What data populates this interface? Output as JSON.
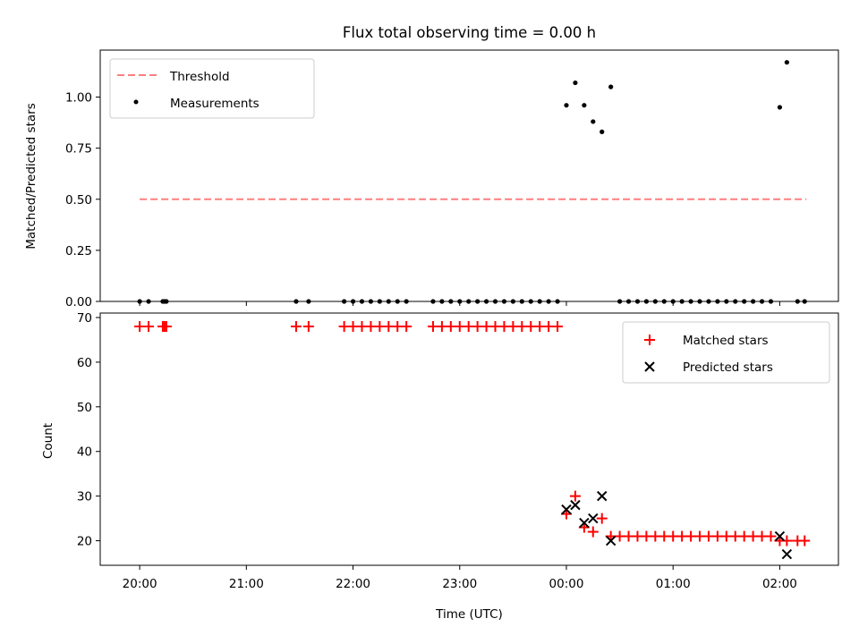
{
  "chart_data": [
    {
      "panel": "top",
      "type": "scatter",
      "title": "Flux total observing time = 0.00 h",
      "xlabel": "",
      "ylabel": "Matched/Predicted stars",
      "ylim": [
        0,
        1.23
      ],
      "yticks": [
        "0.00",
        "0.25",
        "0.50",
        "0.75",
        "1.00"
      ],
      "xlim_hours": [
        19.63,
        26.55
      ],
      "grid": false,
      "legend_position": "top-left",
      "legend": [
        "Threshold",
        "Measurements"
      ],
      "colors": {
        "threshold": "#ff7f7f",
        "measurements": "#000000"
      },
      "series": [
        {
          "name": "Threshold",
          "style": "dashed-line",
          "x": [
            "20:00",
            "26:15"
          ],
          "y": [
            0.5,
            0.5
          ]
        },
        {
          "name": "Measurements",
          "style": "dots",
          "x": [
            "20:00",
            "20:05",
            "20:13",
            "20:14",
            "20:15",
            "21:28",
            "21:35",
            "21:55",
            "22:00",
            "22:05",
            "22:10",
            "22:15",
            "22:20",
            "22:25",
            "22:30",
            "22:45",
            "22:50",
            "22:55",
            "23:00",
            "23:05",
            "23:10",
            "23:15",
            "23:20",
            "23:25",
            "23:30",
            "23:35",
            "23:40",
            "23:45",
            "23:50",
            "23:55",
            "24:00",
            "24:05",
            "24:10",
            "24:15",
            "24:20",
            "24:25",
            "24:30",
            "24:35",
            "24:40",
            "24:45",
            "24:50",
            "24:55",
            "25:00",
            "25:05",
            "25:10",
            "25:15",
            "25:20",
            "25:25",
            "25:30",
            "25:35",
            "25:40",
            "25:45",
            "25:50",
            "25:55",
            "26:00",
            "26:04",
            "26:10",
            "26:14"
          ],
          "y": [
            0,
            0,
            0,
            0,
            0,
            0,
            0,
            0,
            0,
            0,
            0,
            0,
            0,
            0,
            0,
            0,
            0,
            0,
            0,
            0,
            0,
            0,
            0,
            0,
            0,
            0,
            0,
            0,
            0,
            0,
            0.96,
            1.07,
            0.96,
            0.88,
            0.83,
            1.05,
            0,
            0,
            0,
            0,
            0,
            0,
            0,
            0,
            0,
            0,
            0,
            0,
            0,
            0,
            0,
            0,
            0,
            0,
            0.95,
            1.17,
            0,
            0
          ]
        }
      ]
    },
    {
      "panel": "bottom",
      "type": "scatter",
      "xlabel": "Time (UTC)",
      "ylabel": "Count",
      "ylim": [
        14.5,
        71
      ],
      "yticks": [
        "20",
        "30",
        "40",
        "50",
        "60",
        "70"
      ],
      "xticks": [
        "20:00",
        "21:00",
        "22:00",
        "23:00",
        "00:00",
        "01:00",
        "02:00"
      ],
      "xlim_hours": [
        19.63,
        26.55
      ],
      "grid": false,
      "legend_position": "top-right",
      "legend": [
        "Matched stars",
        "Predicted stars"
      ],
      "colors": {
        "matched": "#ff0000",
        "predicted": "#000000"
      },
      "series": [
        {
          "name": "Matched stars",
          "marker": "+",
          "x": [
            "20:00",
            "20:05",
            "20:13",
            "20:14",
            "20:15",
            "21:28",
            "21:35",
            "21:55",
            "22:00",
            "22:05",
            "22:10",
            "22:15",
            "22:20",
            "22:25",
            "22:30",
            "22:45",
            "22:50",
            "22:55",
            "23:00",
            "23:05",
            "23:10",
            "23:15",
            "23:20",
            "23:25",
            "23:30",
            "23:35",
            "23:40",
            "23:45",
            "23:50",
            "23:55",
            "24:00",
            "24:05",
            "24:10",
            "24:15",
            "24:20",
            "24:25",
            "24:30",
            "24:35",
            "24:40",
            "24:45",
            "24:50",
            "24:55",
            "25:00",
            "25:05",
            "25:10",
            "25:15",
            "25:20",
            "25:25",
            "25:30",
            "25:35",
            "25:40",
            "25:45",
            "25:50",
            "25:55",
            "26:00",
            "26:04",
            "26:10",
            "26:14"
          ],
          "y": [
            68,
            68,
            68,
            68,
            68,
            68,
            68,
            68,
            68,
            68,
            68,
            68,
            68,
            68,
            68,
            68,
            68,
            68,
            68,
            68,
            68,
            68,
            68,
            68,
            68,
            68,
            68,
            68,
            68,
            68,
            26,
            30,
            23,
            22,
            25,
            21,
            21,
            21,
            21,
            21,
            21,
            21,
            21,
            21,
            21,
            21,
            21,
            21,
            21,
            21,
            21,
            21,
            21,
            21,
            20,
            20,
            20,
            20
          ]
        },
        {
          "name": "Predicted stars",
          "marker": "x",
          "x": [
            "24:00",
            "24:05",
            "24:10",
            "24:15",
            "24:20",
            "24:25",
            "26:00",
            "26:04"
          ],
          "y": [
            27,
            28,
            24,
            25,
            30,
            20,
            21,
            17
          ]
        }
      ]
    }
  ]
}
